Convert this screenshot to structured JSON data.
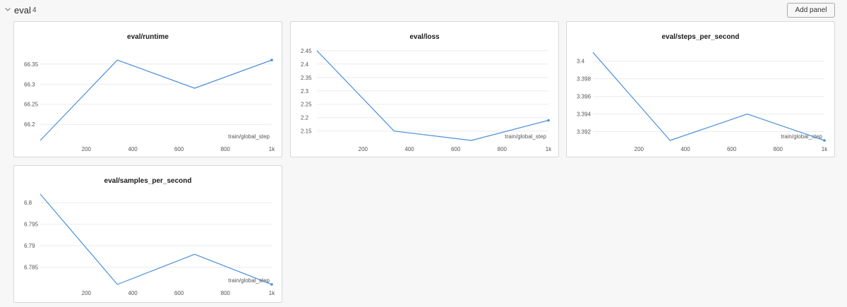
{
  "section": {
    "title": "eval",
    "count": "4",
    "add_panel_label": "Add panel"
  },
  "colors": {
    "line": "#4a90d9",
    "grid": "#ececec"
  },
  "chart_data": [
    {
      "type": "line",
      "title": "eval/runtime",
      "xlabel": "train/global_step",
      "x": [
        1,
        334,
        667,
        1000
      ],
      "series": [
        {
          "values": [
            66.16,
            66.36,
            66.29,
            66.36
          ]
        }
      ],
      "xlim": [
        1,
        1000
      ],
      "ylim": [
        66.16,
        66.39
      ],
      "xticks": [
        200,
        400,
        600,
        800,
        1000
      ],
      "xtick_labels": [
        "200",
        "400",
        "600",
        "800",
        "1k"
      ],
      "yticks": [
        66.2,
        66.25,
        66.3,
        66.35
      ],
      "ytick_labels": [
        "66.2",
        "66.25",
        "66.3",
        "66.35"
      ],
      "grid": true
    },
    {
      "type": "line",
      "title": "eval/loss",
      "xlabel": "train/global_step",
      "x": [
        1,
        334,
        667,
        1000
      ],
      "series": [
        {
          "values": [
            2.45,
            2.15,
            2.115,
            2.19
          ]
        }
      ],
      "xlim": [
        1,
        1000
      ],
      "ylim": [
        2.115,
        2.46
      ],
      "xticks": [
        200,
        400,
        600,
        800,
        1000
      ],
      "xtick_labels": [
        "200",
        "400",
        "600",
        "800",
        "1k"
      ],
      "yticks": [
        2.15,
        2.2,
        2.25,
        2.3,
        2.35,
        2.4,
        2.45
      ],
      "ytick_labels": [
        "2.15",
        "2.2",
        "2.25",
        "2.3",
        "2.35",
        "2.4",
        "2.45"
      ],
      "grid": true
    },
    {
      "type": "line",
      "title": "eval/steps_per_second",
      "xlabel": "train/global_step",
      "x": [
        1,
        334,
        667,
        1000
      ],
      "series": [
        {
          "values": [
            3.401,
            3.391,
            3.394,
            3.391
          ]
        }
      ],
      "xlim": [
        1,
        1000
      ],
      "ylim": [
        3.391,
        3.4015
      ],
      "xticks": [
        200,
        400,
        600,
        800,
        1000
      ],
      "xtick_labels": [
        "200",
        "400",
        "600",
        "800",
        "1k"
      ],
      "yticks": [
        3.392,
        3.394,
        3.396,
        3.398,
        3.4
      ],
      "ytick_labels": [
        "3.392",
        "3.394",
        "3.396",
        "3.398",
        "3.4"
      ],
      "grid": true
    },
    {
      "type": "line",
      "title": "eval/samples_per_second",
      "xlabel": "train/global_step",
      "x": [
        1,
        334,
        667,
        1000
      ],
      "series": [
        {
          "values": [
            6.802,
            6.781,
            6.788,
            6.781
          ]
        }
      ],
      "xlim": [
        1,
        1000
      ],
      "ylim": [
        6.781,
        6.8025
      ],
      "xticks": [
        200,
        400,
        600,
        800,
        1000
      ],
      "xtick_labels": [
        "200",
        "400",
        "600",
        "800",
        "1k"
      ],
      "yticks": [
        6.785,
        6.79,
        6.795,
        6.8
      ],
      "ytick_labels": [
        "6.785",
        "6.79",
        "6.795",
        "6.8"
      ],
      "grid": true
    }
  ]
}
